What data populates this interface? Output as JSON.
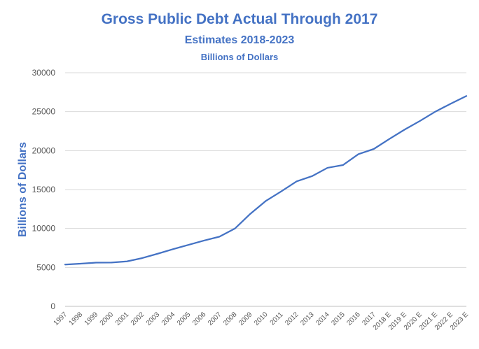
{
  "chart_data": {
    "type": "line",
    "title": "Gross Public Debt Actual Through 2017",
    "subtitle": "Estimates 2018-2023",
    "subtitle2": "Billions of Dollars",
    "xlabel": "",
    "ylabel": "Billions of Dollars",
    "ylim": [
      0,
      30000
    ],
    "yticks": [
      0,
      5000,
      10000,
      15000,
      20000,
      25000,
      30000
    ],
    "grid": true,
    "categories": [
      "1997",
      "1998",
      "1999",
      "2000",
      "2001",
      "2002",
      "2003",
      "2004",
      "2005",
      "2006",
      "2007",
      "2008",
      "2009",
      "2010",
      "2011",
      "2012",
      "2013",
      "2014",
      "2015",
      "2016",
      "2017",
      "2018 E",
      "2019 E",
      "2020 E",
      "2021 E",
      "2022 E",
      "2023 E"
    ],
    "series": [
      {
        "values": [
          5370,
          5480,
          5610,
          5630,
          5770,
          6200,
          6760,
          7350,
          7900,
          8450,
          8950,
          9990,
          11880,
          13530,
          14760,
          16050,
          16720,
          17790,
          18140,
          19540,
          20210,
          21480,
          22700,
          23820,
          25020,
          26040,
          27010
        ],
        "color": "#4472C4"
      }
    ]
  }
}
